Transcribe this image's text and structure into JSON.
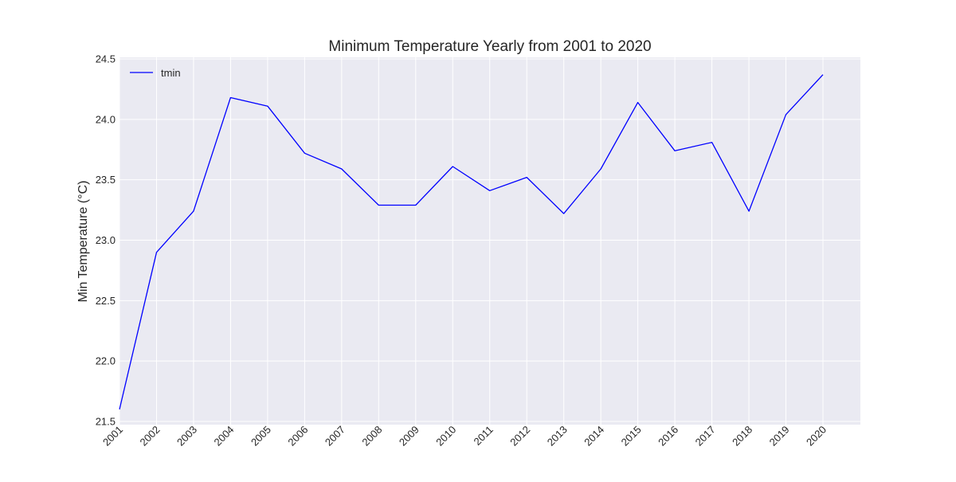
{
  "chart_data": {
    "type": "line",
    "title": "Minimum Temperature Yearly from 2001 to 2020",
    "xlabel": "",
    "ylabel": "Min Temperature (°C)",
    "categories": [
      "2001",
      "2002",
      "2003",
      "2004",
      "2005",
      "2006",
      "2007",
      "2008",
      "2009",
      "2010",
      "2011",
      "2012",
      "2013",
      "2014",
      "2015",
      "2016",
      "2017",
      "2018",
      "2019",
      "2020"
    ],
    "ylim": [
      21.5,
      24.5
    ],
    "yticks": [
      "21.5",
      "22.0",
      "22.5",
      "23.0",
      "23.5",
      "24.0",
      "24.5"
    ],
    "grid": true,
    "legend_position": "top-left",
    "series": [
      {
        "name": "tmin",
        "color": "#0000ff",
        "values": [
          21.6,
          22.9,
          23.24,
          24.18,
          24.11,
          23.72,
          23.59,
          23.29,
          23.29,
          23.61,
          23.41,
          23.52,
          23.22,
          23.59,
          24.14,
          23.74,
          23.81,
          23.24,
          24.04,
          24.37
        ]
      }
    ],
    "colors": {
      "plot_background": "#eaeaf2",
      "grid": "#ffffff",
      "text": "#262626"
    }
  }
}
